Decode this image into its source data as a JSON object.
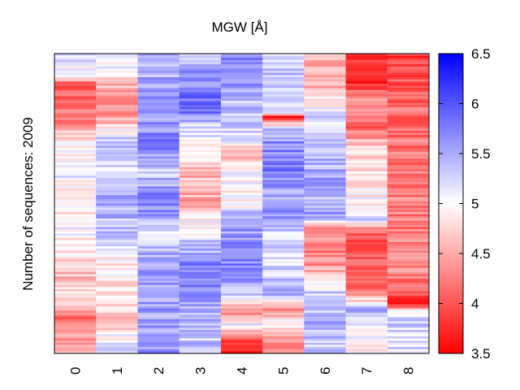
{
  "chart_data": {
    "type": "heatmap",
    "title": "MGW [Å]",
    "ylabel": "Number of sequences: 2009",
    "xlabel": "",
    "x_categories": [
      "0",
      "1",
      "2",
      "3",
      "4",
      "5",
      "6",
      "7",
      "8"
    ],
    "row_count": 2009,
    "colorbar": {
      "min": 3.5,
      "max": 6.5,
      "center": 5.0,
      "ticks": [
        "3.5",
        "4",
        "4.5",
        "5",
        "5.5",
        "6",
        "6.5"
      ],
      "tick_values": [
        3.5,
        4.0,
        4.5,
        5.0,
        5.5,
        6.0,
        6.5
      ],
      "colors": {
        "low": "#ff0000",
        "mid": "#ffffff",
        "high": "#0000ff"
      }
    },
    "column_profiles": [
      [
        [
          0,
          5.2
        ],
        [
          0.08,
          4.9
        ],
        [
          0.1,
          4.0
        ],
        [
          0.22,
          4.2
        ],
        [
          0.3,
          4.9
        ],
        [
          0.4,
          5.1
        ],
        [
          0.5,
          4.9
        ],
        [
          0.6,
          5.0
        ],
        [
          0.66,
          4.8
        ],
        [
          0.75,
          4.6
        ],
        [
          0.82,
          4.9
        ],
        [
          0.86,
          4.2
        ],
        [
          0.95,
          4.4
        ],
        [
          1,
          4.6
        ]
      ],
      [
        [
          0,
          5.3
        ],
        [
          0.1,
          4.6
        ],
        [
          0.2,
          4.3
        ],
        [
          0.3,
          5.4
        ],
        [
          0.4,
          5.2
        ],
        [
          0.5,
          5.5
        ],
        [
          0.6,
          5.3
        ],
        [
          0.7,
          4.9
        ],
        [
          0.8,
          4.8
        ],
        [
          0.9,
          4.7
        ],
        [
          1,
          5.4
        ]
      ],
      [
        [
          0,
          5.4
        ],
        [
          0.1,
          5.5
        ],
        [
          0.2,
          5.6
        ],
        [
          0.3,
          5.7
        ],
        [
          0.4,
          5.3
        ],
        [
          0.5,
          5.8
        ],
        [
          0.6,
          5.2
        ],
        [
          0.7,
          5.6
        ],
        [
          0.8,
          5.6
        ],
        [
          0.9,
          5.5
        ],
        [
          1,
          5.7
        ]
      ],
      [
        [
          0,
          5.0
        ],
        [
          0.05,
          5.7
        ],
        [
          0.1,
          5.5
        ],
        [
          0.18,
          6.0
        ],
        [
          0.25,
          5.2
        ],
        [
          0.32,
          4.9
        ],
        [
          0.4,
          4.6
        ],
        [
          0.5,
          4.5
        ],
        [
          0.55,
          5.0
        ],
        [
          0.6,
          5.1
        ],
        [
          0.7,
          5.7
        ],
        [
          0.75,
          5.8
        ],
        [
          0.85,
          5.5
        ],
        [
          0.95,
          5.3
        ],
        [
          1,
          5.4
        ]
      ],
      [
        [
          0,
          5.7
        ],
        [
          0.1,
          5.6
        ],
        [
          0.2,
          5.3
        ],
        [
          0.3,
          5.1
        ],
        [
          0.32,
          4.4
        ],
        [
          0.4,
          5.0
        ],
        [
          0.5,
          4.9
        ],
        [
          0.53,
          5.5
        ],
        [
          0.6,
          5.6
        ],
        [
          0.7,
          5.7
        ],
        [
          0.8,
          5.4
        ],
        [
          0.86,
          4.2
        ],
        [
          0.9,
          5.1
        ],
        [
          0.96,
          3.7
        ],
        [
          1,
          3.6
        ]
      ],
      [
        [
          0,
          5.3
        ],
        [
          0.1,
          5.4
        ],
        [
          0.2,
          5.2
        ],
        [
          0.21,
          3.6
        ],
        [
          0.25,
          5.3
        ],
        [
          0.3,
          5.7
        ],
        [
          0.4,
          5.8
        ],
        [
          0.5,
          5.4
        ],
        [
          0.55,
          5.8
        ],
        [
          0.6,
          5.3
        ],
        [
          0.7,
          5.2
        ],
        [
          0.8,
          5.5
        ],
        [
          0.86,
          4.3
        ],
        [
          0.9,
          5.0
        ],
        [
          0.96,
          4.3
        ],
        [
          1,
          4.5
        ]
      ],
      [
        [
          0,
          4.5
        ],
        [
          0.06,
          4.5
        ],
        [
          0.12,
          4.6
        ],
        [
          0.2,
          5.2
        ],
        [
          0.3,
          5.4
        ],
        [
          0.4,
          5.5
        ],
        [
          0.47,
          5.4
        ],
        [
          0.55,
          5.6
        ],
        [
          0.57,
          4.3
        ],
        [
          0.7,
          4.3
        ],
        [
          0.78,
          5.2
        ],
        [
          0.9,
          5.5
        ],
        [
          1,
          5.3
        ]
      ],
      [
        [
          0,
          3.8
        ],
        [
          0.1,
          3.7
        ],
        [
          0.15,
          4.4
        ],
        [
          0.25,
          4.1
        ],
        [
          0.3,
          4.7
        ],
        [
          0.4,
          4.8
        ],
        [
          0.5,
          5.0
        ],
        [
          0.55,
          5.3
        ],
        [
          0.6,
          4.0
        ],
        [
          0.75,
          4.0
        ],
        [
          0.8,
          4.3
        ],
        [
          0.86,
          5.6
        ],
        [
          0.9,
          5.0
        ],
        [
          1,
          4.9
        ]
      ],
      [
        [
          0,
          3.8
        ],
        [
          0.15,
          4.1
        ],
        [
          0.3,
          4.2
        ],
        [
          0.4,
          4.2
        ],
        [
          0.5,
          4.3
        ],
        [
          0.6,
          4.2
        ],
        [
          0.7,
          4.4
        ],
        [
          0.8,
          4.0
        ],
        [
          0.84,
          3.8
        ],
        [
          0.86,
          5.2
        ],
        [
          0.9,
          5.3
        ],
        [
          1,
          5.2
        ]
      ]
    ]
  }
}
